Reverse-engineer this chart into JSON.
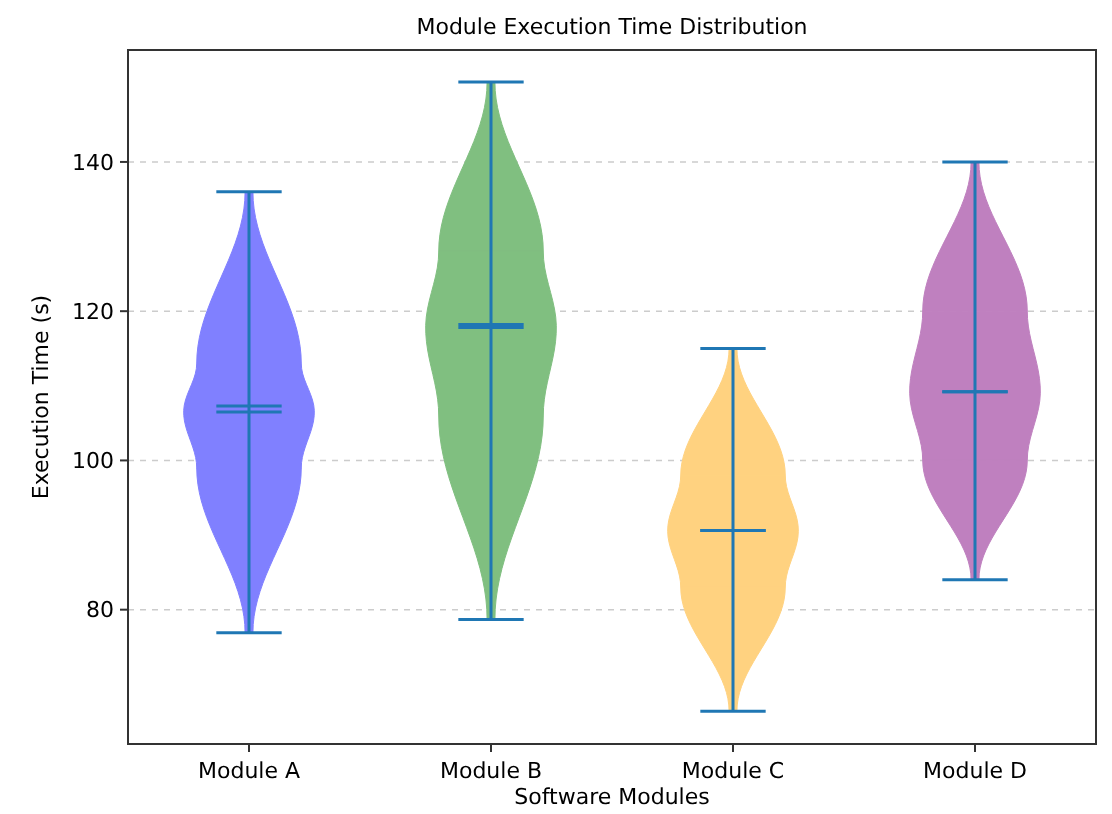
{
  "chart_data": {
    "type": "box",
    "title": "Module Execution Time Distribution",
    "xlabel": "Software Modules",
    "ylabel": "Execution Time (s)",
    "categories": [
      "Module A",
      "Module B",
      "Module C",
      "Module D"
    ],
    "colors": [
      "#8080ff",
      "#80bf80",
      "#ffd280",
      "#bf80bf"
    ],
    "boxes": [
      {
        "low": 76.9,
        "q1": 99,
        "median": 106.5,
        "q3": 113,
        "high": 136,
        "mean": 107.3
      },
      {
        "low": 78.7,
        "q1": 106,
        "median": 117.8,
        "q3": 128,
        "high": 150.7,
        "mean": 118.2
      },
      {
        "low": 66.4,
        "q1": 83,
        "median": 90.6,
        "q3": 98,
        "high": 115,
        "mean": 90.6
      },
      {
        "low": 84,
        "q1": 100,
        "median": 109.2,
        "q3": 120,
        "high": 140,
        "mean": 109.2
      }
    ],
    "ylim": [
      62,
      155
    ],
    "yticks": [
      80,
      100,
      120,
      140
    ],
    "grid": "y"
  }
}
